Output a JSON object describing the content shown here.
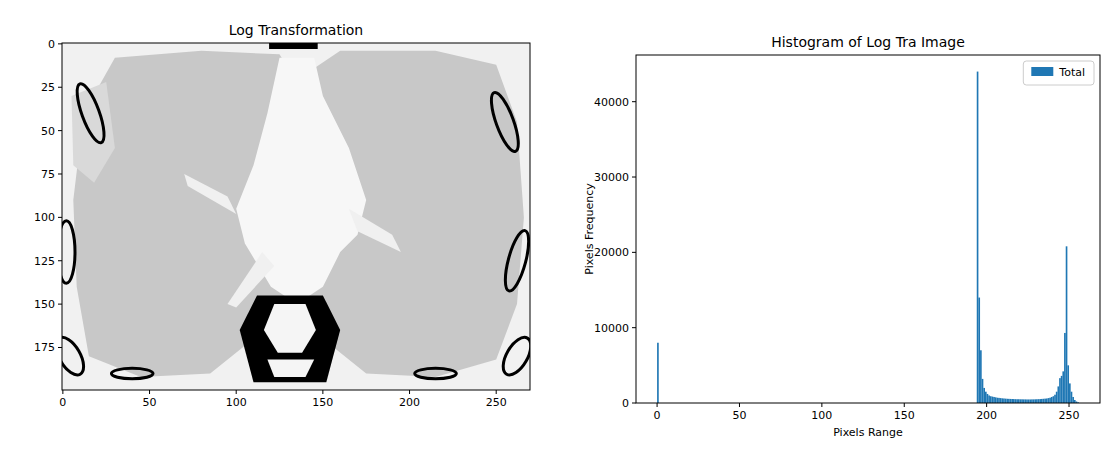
{
  "chart_data": [
    {
      "type": "image",
      "title": "Log Transformation",
      "xlim": [
        -0.5,
        269.5
      ],
      "ylim": [
        199.5,
        -0.5
      ],
      "xticks": [
        0,
        50,
        100,
        150,
        200,
        250
      ],
      "yticks": [
        0,
        25,
        50,
        75,
        100,
        125,
        150,
        175
      ]
    },
    {
      "type": "histogram",
      "title": "Histogram of Log Tra Image",
      "x_label": "Pixels Range",
      "y_label": "Pixels Frequency",
      "bins": [
        0,
        1,
        194,
        195,
        196,
        197,
        198,
        199,
        200,
        201,
        202,
        203,
        204,
        205,
        206,
        207,
        208,
        209,
        210,
        211,
        212,
        213,
        214,
        215,
        216,
        217,
        218,
        219,
        220,
        221,
        222,
        223,
        224,
        225,
        226,
        227,
        228,
        229,
        230,
        231,
        232,
        233,
        234,
        235,
        236,
        237,
        238,
        239,
        240,
        241,
        242,
        243,
        244,
        245,
        246,
        247,
        248,
        249,
        250,
        251,
        252,
        253,
        254,
        255,
        256
      ],
      "series": [
        {
          "name": "Total",
          "color": "#1f77b4",
          "values": [
            8000,
            0,
            44000,
            14000,
            7000,
            3200,
            2000,
            1500,
            1200,
            1000,
            900,
            850,
            800,
            750,
            700,
            680,
            650,
            620,
            600,
            580,
            560,
            550,
            540,
            530,
            520,
            510,
            500,
            500,
            490,
            490,
            480,
            480,
            470,
            470,
            470,
            480,
            480,
            490,
            500,
            510,
            520,
            540,
            560,
            580,
            600,
            650,
            700,
            800,
            900,
            1100,
            1500,
            2200,
            3300,
            3600,
            4200,
            9300,
            20800,
            5000,
            2600,
            1500,
            800,
            400,
            200,
            100
          ]
        }
      ],
      "xlim": [
        -12.8,
        268.8
      ],
      "ylim": [
        0,
        46200
      ],
      "xticks": [
        0,
        50,
        100,
        150,
        200,
        250
      ],
      "yticks": [
        0,
        10000,
        20000,
        30000,
        40000
      ],
      "legend": "upper right"
    }
  ]
}
